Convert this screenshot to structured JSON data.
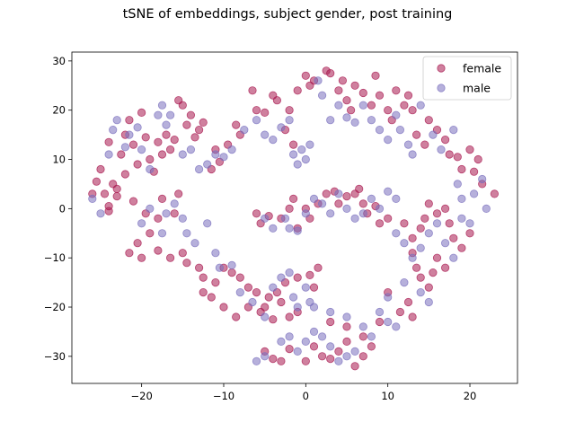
{
  "chart_data": {
    "type": "scatter",
    "title": "tSNE of embeddings, subject gender, post training",
    "xlabel": "",
    "ylabel": "",
    "xlim": [
      -28.5,
      25.8
    ],
    "ylim": [
      -35.5,
      31.8
    ],
    "xticks": [
      -20,
      -10,
      0,
      10,
      20
    ],
    "yticks": [
      -30,
      -20,
      -10,
      0,
      10,
      20,
      30
    ],
    "tick_labels_x": [
      "−20",
      "−10",
      "0",
      "10",
      "20"
    ],
    "tick_labels_y": [
      "−30",
      "−20",
      "−10",
      "0",
      "10",
      "20",
      "30"
    ],
    "legend_position": "top-right",
    "series": [
      {
        "name": "female",
        "color": "#a8174f",
        "points": [
          [
            -26,
            3
          ],
          [
            -25.5,
            5.5
          ],
          [
            -25,
            8
          ],
          [
            -24.5,
            3
          ],
          [
            -24,
            13.5
          ],
          [
            -24,
            0.5
          ],
          [
            -23.5,
            5
          ],
          [
            -23,
            2.5
          ],
          [
            -22.5,
            11
          ],
          [
            -22,
            7
          ],
          [
            -22,
            15
          ],
          [
            -21.5,
            18
          ],
          [
            -21,
            13
          ],
          [
            -20.5,
            9
          ],
          [
            -20,
            19.5
          ],
          [
            -19.5,
            14.5
          ],
          [
            -19,
            10
          ],
          [
            -18.5,
            7.5
          ],
          [
            -18,
            13.5
          ],
          [
            -17.5,
            11
          ],
          [
            -17,
            15
          ],
          [
            -16.5,
            12
          ],
          [
            -16,
            14
          ],
          [
            -15.5,
            22
          ],
          [
            -15,
            21
          ],
          [
            -14.5,
            17
          ],
          [
            -14,
            19
          ],
          [
            -13.5,
            14.5
          ],
          [
            -13,
            16
          ],
          [
            -12.5,
            17.5
          ],
          [
            -11.5,
            8
          ],
          [
            -11,
            12
          ],
          [
            -10.5,
            9.5
          ],
          [
            -9.5,
            13
          ],
          [
            -8.5,
            17
          ],
          [
            -8,
            15
          ],
          [
            -6.5,
            24
          ],
          [
            -6,
            20
          ],
          [
            -5,
            19.5
          ],
          [
            -4,
            23
          ],
          [
            -3.5,
            22
          ],
          [
            -2.5,
            16
          ],
          [
            -2,
            20
          ],
          [
            -1.5,
            13
          ],
          [
            -1,
            24
          ],
          [
            0,
            27
          ],
          [
            0.5,
            25
          ],
          [
            1,
            26
          ],
          [
            2.5,
            28
          ],
          [
            3,
            27.5
          ],
          [
            4,
            24
          ],
          [
            4.5,
            26
          ],
          [
            5,
            22
          ],
          [
            5.5,
            20
          ],
          [
            6,
            25
          ],
          [
            7,
            23.5
          ],
          [
            8,
            21
          ],
          [
            8.5,
            27
          ],
          [
            9,
            23
          ],
          [
            10,
            20
          ],
          [
            10.5,
            18
          ],
          [
            11,
            24
          ],
          [
            12,
            21
          ],
          [
            12.5,
            23
          ],
          [
            13,
            20
          ],
          [
            13.5,
            15
          ],
          [
            14.5,
            13
          ],
          [
            15,
            18
          ],
          [
            16,
            16
          ],
          [
            17,
            14
          ],
          [
            17.5,
            11
          ],
          [
            18.5,
            10.5
          ],
          [
            19,
            8
          ],
          [
            20,
            12
          ],
          [
            20.5,
            7.5
          ],
          [
            21,
            10
          ],
          [
            21.5,
            5
          ],
          [
            23,
            3
          ],
          [
            -24,
            -0.5
          ],
          [
            -23,
            4
          ],
          [
            -21,
            1.5
          ],
          [
            -19.5,
            -1
          ],
          [
            -18,
            -2
          ],
          [
            -17.5,
            2
          ],
          [
            -16,
            -1
          ],
          [
            -15.5,
            3
          ],
          [
            -19,
            -5
          ],
          [
            -20.5,
            -7
          ],
          [
            -21.5,
            -9
          ],
          [
            -20,
            -10
          ],
          [
            -18,
            -8.5
          ],
          [
            -16.5,
            -10
          ],
          [
            -15,
            -9
          ],
          [
            -14.5,
            -11
          ],
          [
            -13,
            -12
          ],
          [
            -12.5,
            -14
          ],
          [
            -11,
            -15
          ],
          [
            -10,
            -12
          ],
          [
            -9,
            -13
          ],
          [
            -8,
            -14
          ],
          [
            -7,
            -16
          ],
          [
            -6,
            -17
          ],
          [
            -5,
            -20
          ],
          [
            -4.5,
            -18
          ],
          [
            -3.5,
            -17
          ],
          [
            -2.5,
            -15
          ],
          [
            -1,
            -14
          ],
          [
            0.5,
            -13.5
          ],
          [
            1.5,
            -12
          ],
          [
            1,
            -16
          ],
          [
            -1,
            -21
          ],
          [
            -2,
            -22
          ],
          [
            -3,
            -19
          ],
          [
            -4,
            -22.5
          ],
          [
            -5.5,
            -21
          ],
          [
            -7,
            -20
          ],
          [
            -8.5,
            -22
          ],
          [
            -10,
            -20
          ],
          [
            -11.5,
            -18
          ],
          [
            -12.5,
            -17
          ],
          [
            -2,
            0
          ],
          [
            -1.5,
            2
          ],
          [
            -1,
            -4
          ],
          [
            0,
            0
          ],
          [
            0.5,
            -2
          ],
          [
            1.5,
            1
          ],
          [
            2.5,
            3
          ],
          [
            3.5,
            3.5
          ],
          [
            4,
            1
          ],
          [
            5,
            2.5
          ],
          [
            6,
            3
          ],
          [
            6.5,
            4
          ],
          [
            7,
            1
          ],
          [
            7.5,
            -1
          ],
          [
            8.5,
            0.5
          ],
          [
            9,
            -3
          ],
          [
            10,
            -2
          ],
          [
            -3,
            -2
          ],
          [
            -4.5,
            -1.5
          ],
          [
            -5.5,
            -3
          ],
          [
            -6,
            -1
          ],
          [
            12,
            -3
          ],
          [
            13,
            -6
          ],
          [
            14,
            -4
          ],
          [
            14.5,
            -2
          ],
          [
            15,
            1
          ],
          [
            16,
            -1
          ],
          [
            17,
            0
          ],
          [
            17.5,
            -3
          ],
          [
            18,
            -6
          ],
          [
            19,
            -8
          ],
          [
            20,
            -5
          ],
          [
            13,
            -9
          ],
          [
            13.5,
            -12
          ],
          [
            14,
            -14
          ],
          [
            15,
            -16
          ],
          [
            15.5,
            -13
          ],
          [
            16,
            -10
          ],
          [
            17,
            -12
          ],
          [
            12.5,
            -19
          ],
          [
            13,
            -22
          ],
          [
            11.5,
            -21
          ],
          [
            10,
            -17
          ],
          [
            -5,
            -29
          ],
          [
            -4,
            -30.5
          ],
          [
            -3,
            -31
          ],
          [
            -2,
            -28.5
          ],
          [
            0,
            -31
          ],
          [
            1,
            -28
          ],
          [
            2,
            -30
          ],
          [
            3,
            -30.5
          ],
          [
            4,
            -29
          ],
          [
            5,
            -27
          ],
          [
            6,
            -32
          ],
          [
            7,
            -30
          ],
          [
            3,
            -23
          ],
          [
            5,
            -24
          ],
          [
            7,
            -26
          ],
          [
            8,
            -28
          ],
          [
            9,
            -23
          ]
        ]
      },
      {
        "name": "male",
        "color": "#7a6fbd",
        "points": [
          [
            -26,
            2
          ],
          [
            -25,
            -1
          ],
          [
            -24,
            11
          ],
          [
            -23.5,
            16
          ],
          [
            -23,
            18
          ],
          [
            -22,
            12.5
          ],
          [
            -21.5,
            15
          ],
          [
            -20.5,
            16.5
          ],
          [
            -20,
            12
          ],
          [
            -19,
            8
          ],
          [
            -18,
            19
          ],
          [
            -17.5,
            21
          ],
          [
            -17,
            17
          ],
          [
            -16.5,
            19
          ],
          [
            -15,
            11
          ],
          [
            -14,
            12
          ],
          [
            -13,
            8
          ],
          [
            -12,
            9
          ],
          [
            -11,
            11
          ],
          [
            -10,
            10.5
          ],
          [
            -9,
            12
          ],
          [
            -7.5,
            16
          ],
          [
            -6,
            18
          ],
          [
            -5,
            15
          ],
          [
            -4,
            14
          ],
          [
            -3,
            16.5
          ],
          [
            -2,
            18
          ],
          [
            -1.5,
            11
          ],
          [
            -1,
            9
          ],
          [
            -0.5,
            12
          ],
          [
            0,
            10
          ],
          [
            0.5,
            13
          ],
          [
            1.5,
            26
          ],
          [
            2,
            23
          ],
          [
            3,
            18
          ],
          [
            4,
            21
          ],
          [
            5,
            18.5
          ],
          [
            6,
            17.5
          ],
          [
            7,
            21
          ],
          [
            8,
            18
          ],
          [
            9,
            16
          ],
          [
            10,
            14
          ],
          [
            11,
            19
          ],
          [
            11.5,
            16
          ],
          [
            12.5,
            13
          ],
          [
            13,
            11
          ],
          [
            14,
            21
          ],
          [
            15.5,
            15
          ],
          [
            16.5,
            12
          ],
          [
            18,
            16
          ],
          [
            18.5,
            5
          ],
          [
            19,
            2
          ],
          [
            20.5,
            3
          ],
          [
            21.5,
            6
          ],
          [
            22,
            0
          ],
          [
            -20,
            -3
          ],
          [
            -19,
            0
          ],
          [
            -17.5,
            -5
          ],
          [
            -17,
            -1
          ],
          [
            -16,
            1
          ],
          [
            -15,
            -2
          ],
          [
            -14.5,
            -5
          ],
          [
            -13.5,
            -7
          ],
          [
            -12,
            -3
          ],
          [
            -11,
            -9
          ],
          [
            -10.5,
            -12
          ],
          [
            -9,
            -11.5
          ],
          [
            -8,
            -17
          ],
          [
            -6.5,
            -19
          ],
          [
            -5,
            -22
          ],
          [
            -4,
            -16
          ],
          [
            -3,
            -14
          ],
          [
            -2,
            -13
          ],
          [
            -1.5,
            -18
          ],
          [
            0,
            -16
          ],
          [
            0.5,
            -19
          ],
          [
            1,
            -20
          ],
          [
            -2.5,
            -2
          ],
          [
            -2,
            -4
          ],
          [
            -1,
            -4.5
          ],
          [
            0,
            -1
          ],
          [
            1,
            2
          ],
          [
            2,
            1
          ],
          [
            3,
            -1
          ],
          [
            4,
            3
          ],
          [
            5,
            0
          ],
          [
            6,
            -2
          ],
          [
            7,
            -1
          ],
          [
            8,
            2
          ],
          [
            9,
            0
          ],
          [
            10,
            3.5
          ],
          [
            11,
            2
          ],
          [
            -4,
            -4
          ],
          [
            -5,
            -2
          ],
          [
            11,
            -5
          ],
          [
            12,
            -7
          ],
          [
            14,
            -8
          ],
          [
            15,
            -5
          ],
          [
            16,
            -3
          ],
          [
            17,
            -7
          ],
          [
            18,
            -10
          ],
          [
            19,
            -2
          ],
          [
            20,
            -3
          ],
          [
            13,
            -10
          ],
          [
            12,
            -15
          ],
          [
            14,
            -17
          ],
          [
            15,
            -19
          ],
          [
            10,
            -18
          ],
          [
            11,
            -24
          ],
          [
            9,
            -21
          ],
          [
            10,
            -23
          ],
          [
            -6,
            -31
          ],
          [
            -5,
            -30
          ],
          [
            -3,
            -27
          ],
          [
            -2,
            -26
          ],
          [
            -1,
            -29
          ],
          [
            0,
            -27
          ],
          [
            1,
            -25
          ],
          [
            2,
            -26
          ],
          [
            3,
            -28
          ],
          [
            4,
            -31
          ],
          [
            5,
            -30
          ],
          [
            6,
            -29
          ],
          [
            7,
            -24
          ],
          [
            8,
            -26
          ],
          [
            5,
            -22
          ],
          [
            3,
            -21
          ],
          [
            -1,
            -20
          ]
        ]
      }
    ]
  }
}
